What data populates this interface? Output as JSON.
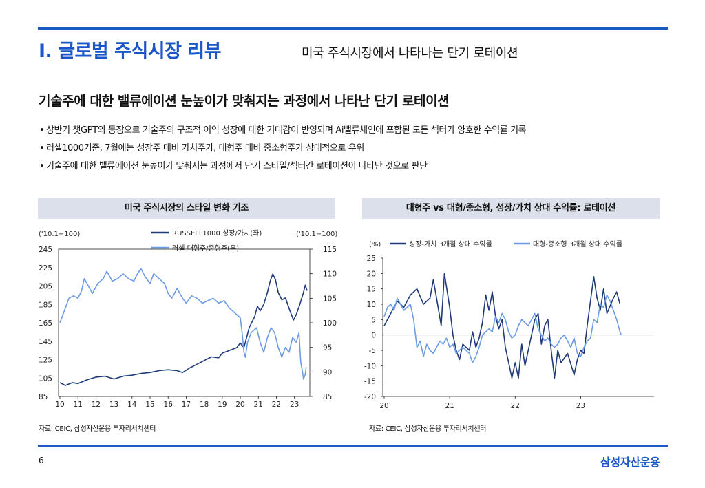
{
  "header": {
    "section_title": "I. 글로벌 주식시장 리뷰",
    "subtitle": "미국 주식시장에서 나타나는 단기 로테이션"
  },
  "headline": "기술주에 대한 밸류에이션 눈높이가 맞춰지는 과정에서 나타난 단기 로테이션",
  "bullets": [
    "상반기 챗GPT의 등장으로 기술주의 구조적 이익 성장에 대한 기대감이 반영되며 Ai밸류체인에 포함된 모든 섹터가 양호한 수익률 기록",
    "러셀1000기준, 7월에는 성장주 대비 가치주가, 대형주 대비 중소형주가 상대적으로 우위",
    "기술주에 대한 밸류에이션 눈높이가 맞춰지는 과정에서 단기 스타일/섹터간 로테이션이 나타난 것으로 판단"
  ],
  "footer": {
    "page_number": "6",
    "brand": "삼성자산운용"
  },
  "colors": {
    "accent": "#1a56c9",
    "series_dark": "#1f3a78",
    "series_light": "#6b9be6",
    "panel_bg": "#dbe0ea"
  },
  "chart_data": [
    {
      "type": "line",
      "panel_title": "미국 주식시장의 스타일 변화 기조",
      "source": "자료: CEIC, 삼성자산운용 투자리서치센터",
      "left_axis_unit": "('10.1=100)",
      "right_axis_unit": "('10.1=100)",
      "x_ticks": [
        "10",
        "11",
        "12",
        "13",
        "14",
        "15",
        "16",
        "17",
        "18",
        "19",
        "20",
        "21",
        "22",
        "23"
      ],
      "x_range": [
        2010,
        2023.7
      ],
      "y_left_ticks": [
        "85",
        "105",
        "125",
        "145",
        "165",
        "185",
        "205",
        "225",
        "245"
      ],
      "y_left_range": [
        85,
        245
      ],
      "y_right_ticks": [
        "85",
        "90",
        "95",
        "100",
        "105",
        "110",
        "115"
      ],
      "y_right_range": [
        85,
        115
      ],
      "legend_position": "top-center",
      "series": [
        {
          "name": "RUSSELL1000 성장/가치(좌)",
          "axis": "left",
          "color": "#1f3a78",
          "points": [
            [
              2010,
              100
            ],
            [
              2010.3,
              97
            ],
            [
              2010.7,
              100
            ],
            [
              2011.0,
              99
            ],
            [
              2011.5,
              103
            ],
            [
              2012.0,
              106
            ],
            [
              2012.5,
              107
            ],
            [
              2013.0,
              104
            ],
            [
              2013.5,
              107
            ],
            [
              2014.0,
              108
            ],
            [
              2014.5,
              110
            ],
            [
              2015.0,
              111
            ],
            [
              2015.5,
              113
            ],
            [
              2016.0,
              114
            ],
            [
              2016.5,
              113
            ],
            [
              2016.8,
              111
            ],
            [
              2017.2,
              116
            ],
            [
              2017.6,
              120
            ],
            [
              2018.0,
              124
            ],
            [
              2018.4,
              128
            ],
            [
              2018.8,
              127
            ],
            [
              2019.0,
              132
            ],
            [
              2019.4,
              135
            ],
            [
              2019.8,
              138
            ],
            [
              2020.0,
              143
            ],
            [
              2020.2,
              138
            ],
            [
              2020.5,
              160
            ],
            [
              2020.8,
              172
            ],
            [
              2020.95,
              183
            ],
            [
              2021.1,
              178
            ],
            [
              2021.3,
              185
            ],
            [
              2021.5,
              198
            ],
            [
              2021.65,
              210
            ],
            [
              2021.8,
              218
            ],
            [
              2021.95,
              212
            ],
            [
              2022.1,
              198
            ],
            [
              2022.3,
              190
            ],
            [
              2022.5,
              192
            ],
            [
              2022.75,
              178
            ],
            [
              2022.95,
              168
            ],
            [
              2023.1,
              174
            ],
            [
              2023.3,
              185
            ],
            [
              2023.5,
              198
            ],
            [
              2023.6,
              206
            ],
            [
              2023.7,
              200
            ]
          ]
        },
        {
          "name": "러셀 대형주/중형주(우)",
          "axis": "right",
          "color": "#6b9be6",
          "points": [
            [
              2010,
              100
            ],
            [
              2010.25,
              102.5
            ],
            [
              2010.5,
              105
            ],
            [
              2010.75,
              105.5
            ],
            [
              2011.0,
              105
            ],
            [
              2011.2,
              106.5
            ],
            [
              2011.35,
              109
            ],
            [
              2011.5,
              108
            ],
            [
              2011.8,
              106
            ],
            [
              2012.1,
              108
            ],
            [
              2012.4,
              109
            ],
            [
              2012.6,
              110.5
            ],
            [
              2012.9,
              108.5
            ],
            [
              2013.2,
              109
            ],
            [
              2013.5,
              110
            ],
            [
              2013.8,
              109
            ],
            [
              2014.1,
              108.5
            ],
            [
              2014.3,
              110
            ],
            [
              2014.5,
              111
            ],
            [
              2014.7,
              109.5
            ],
            [
              2015.0,
              108
            ],
            [
              2015.2,
              110
            ],
            [
              2015.5,
              109
            ],
            [
              2015.8,
              108
            ],
            [
              2016.0,
              106
            ],
            [
              2016.2,
              105
            ],
            [
              2016.5,
              107
            ],
            [
              2016.8,
              105
            ],
            [
              2017.0,
              104
            ],
            [
              2017.3,
              105.5
            ],
            [
              2017.6,
              105
            ],
            [
              2017.9,
              104
            ],
            [
              2018.2,
              104.5
            ],
            [
              2018.5,
              105
            ],
            [
              2018.8,
              104
            ],
            [
              2019.1,
              104.5
            ],
            [
              2019.4,
              103
            ],
            [
              2019.7,
              102
            ],
            [
              2020.0,
              101
            ],
            [
              2020.1,
              98
            ],
            [
              2020.2,
              94
            ],
            [
              2020.28,
              93
            ],
            [
              2020.4,
              96
            ],
            [
              2020.6,
              98
            ],
            [
              2020.9,
              99
            ],
            [
              2021.1,
              96
            ],
            [
              2021.3,
              94
            ],
            [
              2021.5,
              97
            ],
            [
              2021.7,
              99
            ],
            [
              2021.9,
              98
            ],
            [
              2022.1,
              95
            ],
            [
              2022.3,
              93
            ],
            [
              2022.5,
              95
            ],
            [
              2022.7,
              94
            ],
            [
              2022.9,
              97
            ],
            [
              2023.1,
              96
            ],
            [
              2023.25,
              98
            ],
            [
              2023.35,
              92
            ],
            [
              2023.45,
              90
            ],
            [
              2023.5,
              88.5
            ],
            [
              2023.6,
              89.5
            ],
            [
              2023.65,
              91
            ]
          ]
        }
      ]
    },
    {
      "type": "line",
      "panel_title": "대형주 vs 대형/중소형, 성장/가치 상대 수익률: 로테이션",
      "source": "자료: CEIC, 삼성자산운용 투자리서치센터",
      "y_unit": "(%)",
      "x_ticks": [
        "20",
        "21",
        "22",
        "23"
      ],
      "x_range": [
        2020,
        2023.7
      ],
      "y_ticks": [
        "-20",
        "-15",
        "-10",
        "-5",
        "0",
        "5",
        "10",
        "15",
        "20",
        "25"
      ],
      "y_range": [
        -20,
        25
      ],
      "legend_position": "top",
      "series": [
        {
          "name": "성장-가치 3개월 상대 수익률",
          "color": "#1f3a78",
          "points": [
            [
              2020.0,
              3
            ],
            [
              2020.1,
              7
            ],
            [
              2020.2,
              11
            ],
            [
              2020.3,
              9
            ],
            [
              2020.4,
              13
            ],
            [
              2020.5,
              15
            ],
            [
              2020.6,
              10
            ],
            [
              2020.7,
              12
            ],
            [
              2020.75,
              18
            ],
            [
              2020.8,
              12
            ],
            [
              2020.87,
              3
            ],
            [
              2020.92,
              20
            ],
            [
              2021.0,
              9
            ],
            [
              2021.05,
              0
            ],
            [
              2021.1,
              -5
            ],
            [
              2021.15,
              -8
            ],
            [
              2021.2,
              -3
            ],
            [
              2021.3,
              -5
            ],
            [
              2021.35,
              1
            ],
            [
              2021.4,
              -4
            ],
            [
              2021.45,
              -1
            ],
            [
              2021.5,
              4
            ],
            [
              2021.55,
              13
            ],
            [
              2021.6,
              8
            ],
            [
              2021.65,
              14
            ],
            [
              2021.7,
              6
            ],
            [
              2021.75,
              2
            ],
            [
              2021.8,
              5
            ],
            [
              2021.85,
              -4
            ],
            [
              2021.9,
              -9
            ],
            [
              2021.95,
              -14
            ],
            [
              2022.0,
              -9
            ],
            [
              2022.05,
              -14
            ],
            [
              2022.1,
              -3
            ],
            [
              2022.15,
              -10
            ],
            [
              2022.2,
              -5
            ],
            [
              2022.3,
              5
            ],
            [
              2022.35,
              7
            ],
            [
              2022.4,
              -3
            ],
            [
              2022.45,
              3
            ],
            [
              2022.5,
              5
            ],
            [
              2022.55,
              -5
            ],
            [
              2022.6,
              -14
            ],
            [
              2022.65,
              -5
            ],
            [
              2022.7,
              -9
            ],
            [
              2022.8,
              -6
            ],
            [
              2022.9,
              -13
            ],
            [
              2022.95,
              -8
            ],
            [
              2023.0,
              -5
            ],
            [
              2023.05,
              -6
            ],
            [
              2023.1,
              3
            ],
            [
              2023.2,
              19
            ],
            [
              2023.25,
              12
            ],
            [
              2023.3,
              8
            ],
            [
              2023.35,
              15
            ],
            [
              2023.4,
              7
            ],
            [
              2023.5,
              12
            ],
            [
              2023.55,
              14
            ],
            [
              2023.6,
              10
            ]
          ]
        },
        {
          "name": "대형-중소형 3개월 상대 수익률",
          "color": "#6b9be6",
          "points": [
            [
              2020.0,
              6
            ],
            [
              2020.05,
              9
            ],
            [
              2020.1,
              10
            ],
            [
              2020.15,
              8
            ],
            [
              2020.2,
              12
            ],
            [
              2020.3,
              8
            ],
            [
              2020.4,
              10
            ],
            [
              2020.45,
              5
            ],
            [
              2020.5,
              -4
            ],
            [
              2020.55,
              -2
            ],
            [
              2020.6,
              -7
            ],
            [
              2020.65,
              -3
            ],
            [
              2020.7,
              -5
            ],
            [
              2020.75,
              -6
            ],
            [
              2020.8,
              -4
            ],
            [
              2020.85,
              -2
            ],
            [
              2020.9,
              -3
            ],
            [
              2020.95,
              -1
            ],
            [
              2021.0,
              -4
            ],
            [
              2021.05,
              -3
            ],
            [
              2021.1,
              -6
            ],
            [
              2021.2,
              -4
            ],
            [
              2021.3,
              -6
            ],
            [
              2021.35,
              -9
            ],
            [
              2021.4,
              -7
            ],
            [
              2021.45,
              -4
            ],
            [
              2021.5,
              0
            ],
            [
              2021.6,
              2
            ],
            [
              2021.65,
              1
            ],
            [
              2021.7,
              6
            ],
            [
              2021.75,
              4
            ],
            [
              2021.8,
              7
            ],
            [
              2021.85,
              5
            ],
            [
              2021.9,
              1
            ],
            [
              2021.95,
              -1
            ],
            [
              2022.0,
              0
            ],
            [
              2022.05,
              3
            ],
            [
              2022.1,
              5
            ],
            [
              2022.15,
              4
            ],
            [
              2022.2,
              3
            ],
            [
              2022.25,
              5
            ],
            [
              2022.3,
              7
            ],
            [
              2022.35,
              2
            ],
            [
              2022.4,
              0
            ],
            [
              2022.45,
              -2
            ],
            [
              2022.5,
              -1
            ],
            [
              2022.55,
              -3
            ],
            [
              2022.6,
              -4
            ],
            [
              2022.65,
              -3
            ],
            [
              2022.7,
              -1
            ],
            [
              2022.75,
              0
            ],
            [
              2022.8,
              -2
            ],
            [
              2022.85,
              -4
            ],
            [
              2022.9,
              -1
            ],
            [
              2022.95,
              -6
            ],
            [
              2023.0,
              -7
            ],
            [
              2023.05,
              -4
            ],
            [
              2023.1,
              -2
            ],
            [
              2023.15,
              -1
            ],
            [
              2023.2,
              5
            ],
            [
              2023.25,
              4
            ],
            [
              2023.3,
              10
            ],
            [
              2023.35,
              9
            ],
            [
              2023.4,
              13
            ],
            [
              2023.45,
              11
            ],
            [
              2023.5,
              8
            ],
            [
              2023.55,
              5
            ],
            [
              2023.6,
              1
            ],
            [
              2023.62,
              0
            ]
          ]
        }
      ]
    }
  ]
}
